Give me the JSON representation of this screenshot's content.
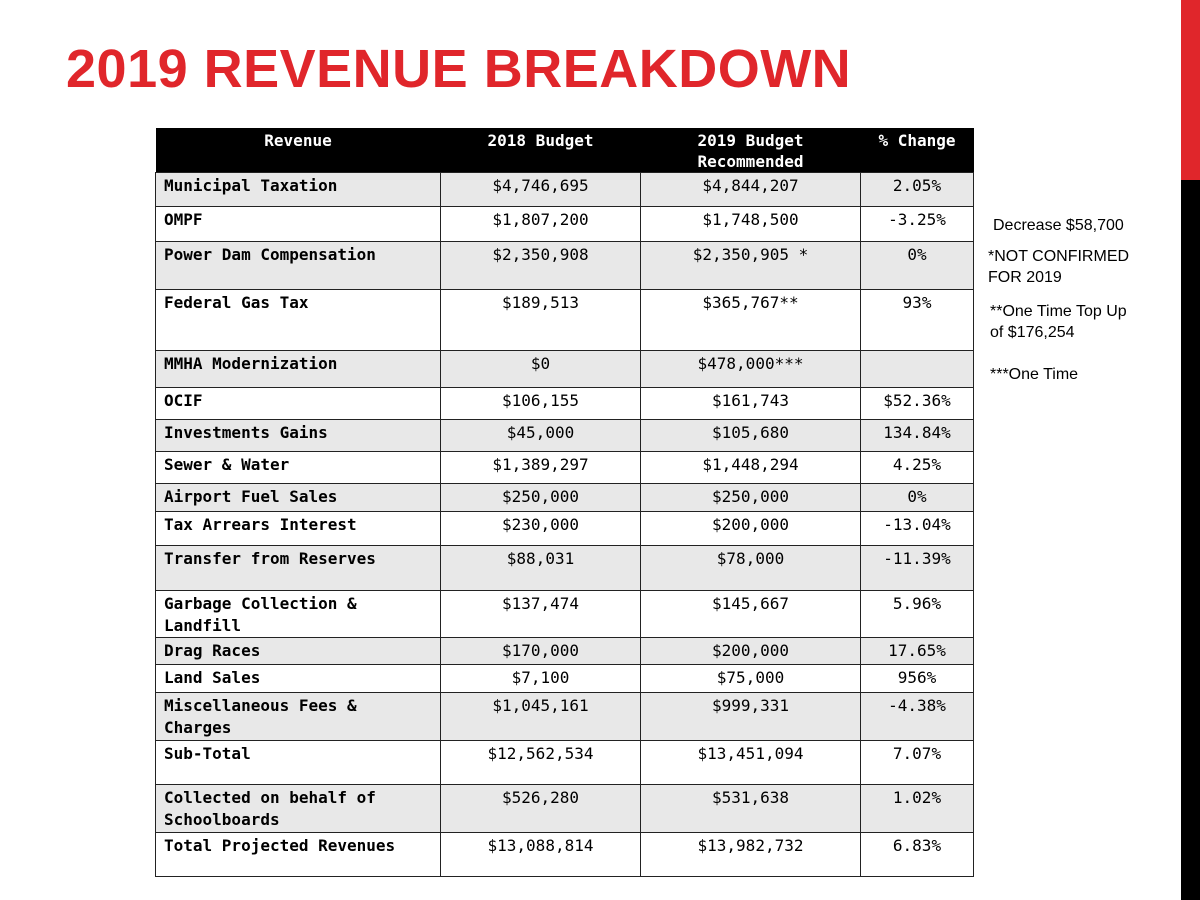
{
  "header": {
    "title": "2019 REVENUE BREAKDOWN"
  },
  "table": {
    "columns": [
      "Revenue",
      "2018 Budget",
      "2019 Budget Recommended",
      "% Change"
    ],
    "rows": [
      [
        "Municipal Taxation",
        "$4,746,695",
        "$4,844,207",
        "2.05%"
      ],
      [
        "OMPF",
        "$1,807,200",
        "$1,748,500",
        "-3.25%"
      ],
      [
        "Power Dam Compensation",
        "$2,350,908",
        "$2,350,905 *",
        "0%"
      ],
      [
        "Federal Gas Tax",
        "$189,513",
        "$365,767**",
        "93%"
      ],
      [
        "MMHA Modernization",
        "$0",
        "$478,000***",
        null
      ],
      [
        "OCIF",
        "$106,155",
        "$161,743",
        "$52.36%"
      ],
      [
        "Investments Gains",
        "$45,000",
        "$105,680",
        "134.84%"
      ],
      [
        "Sewer & Water",
        "$1,389,297",
        "$1,448,294",
        "4.25%"
      ],
      [
        "Airport Fuel Sales",
        "$250,000",
        "$250,000",
        "0%"
      ],
      [
        "Tax Arrears Interest",
        "$230,000",
        "$200,000",
        "-13.04%"
      ],
      [
        "Transfer from Reserves",
        "$88,031",
        "$78,000",
        "-11.39%"
      ],
      [
        "Garbage Collection & Landfill",
        "$137,474",
        "$145,667",
        "5.96%"
      ],
      [
        "Drag Races",
        "$170,000",
        "$200,000",
        "17.65%"
      ],
      [
        "Land Sales",
        "$7,100",
        "$75,000",
        "956%"
      ],
      [
        "Miscellaneous Fees & Charges",
        "$1,045,161",
        "$999,331",
        "-4.38%"
      ],
      [
        "Sub-Total",
        "$12,562,534",
        "$13,451,094",
        "7.07%"
      ],
      [
        "Collected on behalf of Schoolboards",
        "$526,280",
        "$531,638",
        "1.02%"
      ],
      [
        "Total Projected Revenues",
        "$13,088,814",
        "$13,982,732",
        "6.83%"
      ]
    ]
  },
  "notes": [
    [
      "Decrease $58,700"
    ],
    [
      "*NOT CONFIRMED",
      "FOR 2019"
    ],
    [
      "**One Time Top Up",
      "of $176,254"
    ],
    [
      "***One Time"
    ]
  ]
}
